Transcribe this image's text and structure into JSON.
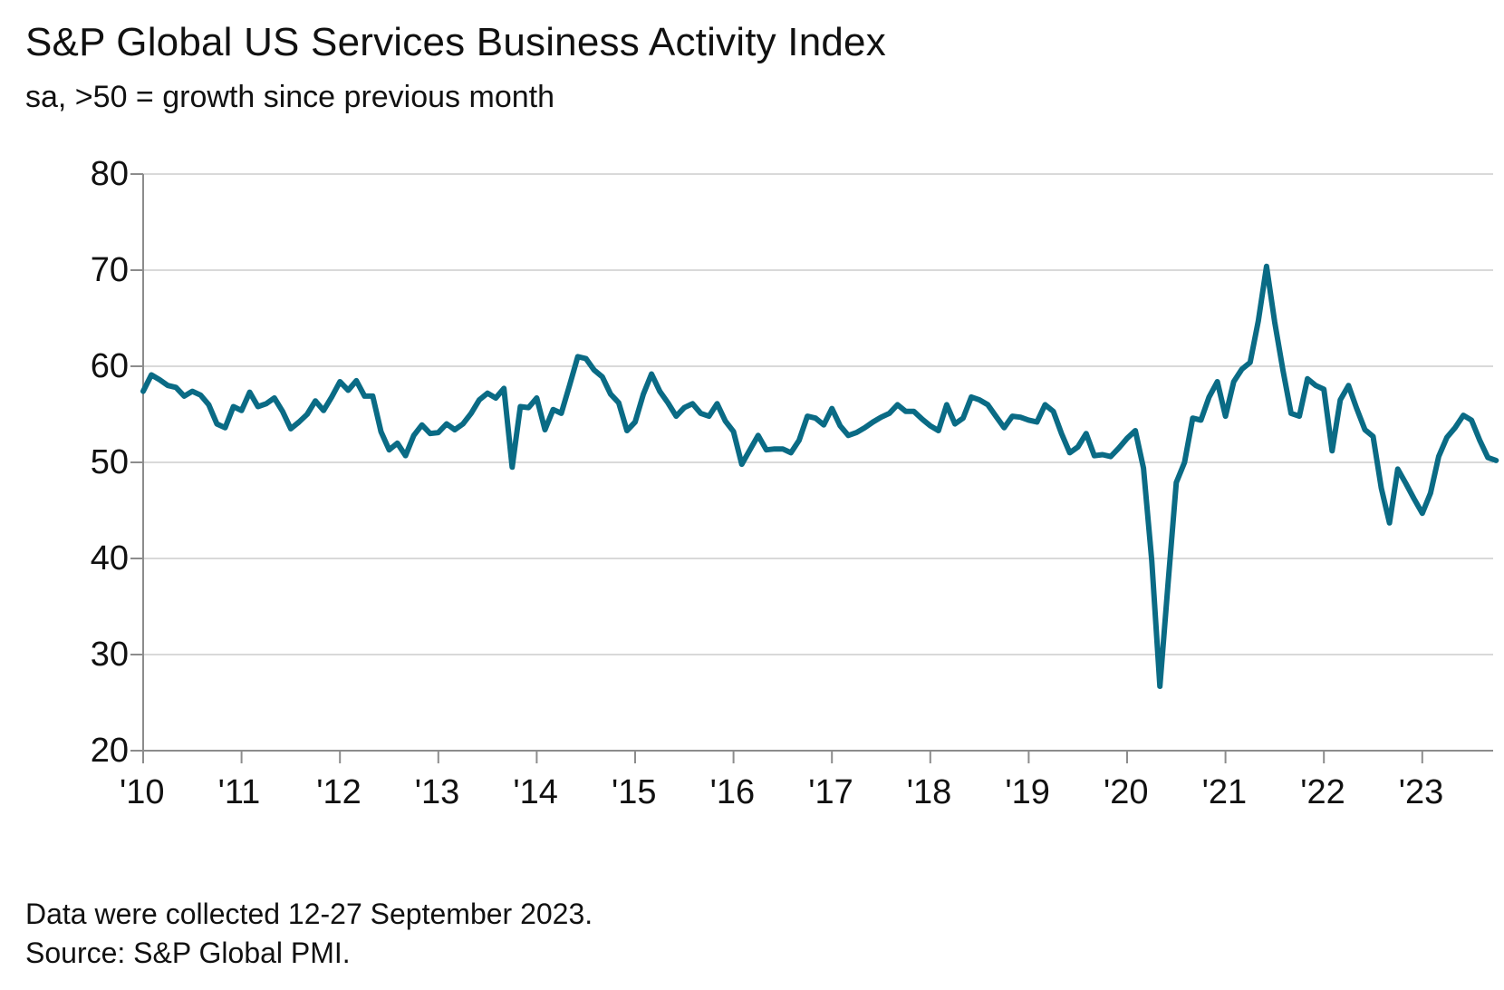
{
  "title": "S&P Global US Services Business Activity Index",
  "subtitle": "sa, >50 = growth since previous month",
  "footnotes": [
    "Data were collected 12-27 September 2023.",
    "Source: S&P Global PMI."
  ],
  "chart_data": {
    "type": "line",
    "title": "S&P Global US Services Business Activity Index",
    "subtitle": "sa, >50 = growth since previous month",
    "xlabel": "",
    "ylabel": "",
    "ylim": [
      20,
      80
    ],
    "yticks": [
      "80",
      "70",
      "60",
      "50",
      "40",
      "30",
      "20"
    ],
    "xticks": [
      "'10",
      "'11",
      "'12",
      "'13",
      "'14",
      "'15",
      "'16",
      "'17",
      "'18",
      "'19",
      "'20",
      "'21",
      "'22",
      "'23"
    ],
    "grid": true,
    "legend": "none",
    "color": "#0a6b85",
    "x_start": "2010-01",
    "x_end": "2023-09",
    "frequency": "monthly",
    "series": [
      {
        "values": [
          57.4,
          59.1,
          58.6,
          58.0,
          57.8,
          56.9,
          57.4,
          57.0,
          56.0,
          54.0,
          53.6,
          55.8,
          55.4,
          57.3,
          55.8,
          56.1,
          56.7,
          55.3,
          53.5,
          54.2,
          55.0,
          56.4,
          55.4,
          56.8,
          58.4,
          57.5,
          58.5,
          56.9,
          56.9,
          53.2,
          51.3,
          52.0,
          50.7,
          52.8,
          53.9,
          53.0,
          53.1,
          54.0,
          53.4,
          54.0,
          55.1,
          56.5,
          57.2,
          56.7,
          57.7,
          49.5,
          55.8,
          55.7,
          56.7,
          53.4,
          55.5,
          55.1,
          58.0,
          61.0,
          60.8,
          59.6,
          58.9,
          57.1,
          56.2,
          53.3,
          54.2,
          57.1,
          59.2,
          57.4,
          56.2,
          54.8,
          55.7,
          56.1,
          55.1,
          54.8,
          56.1,
          54.3,
          53.2,
          49.8,
          51.3,
          52.8,
          51.3,
          51.4,
          51.4,
          51.0,
          52.3,
          54.8,
          54.6,
          53.9,
          55.6,
          53.8,
          52.8,
          53.1,
          53.6,
          54.2,
          54.7,
          55.1,
          56.0,
          55.3,
          55.3,
          54.5,
          53.8,
          53.3,
          56.0,
          54.0,
          54.6,
          56.8,
          56.5,
          56.0,
          54.8,
          53.6,
          54.8,
          54.7,
          54.4,
          54.2,
          56.0,
          55.3,
          53.0,
          51.0,
          51.6,
          53.0,
          50.7,
          50.8,
          50.6,
          51.5,
          52.5,
          53.3,
          49.4,
          39.8,
          26.7,
          37.5,
          47.9,
          50.0,
          54.6,
          54.4,
          56.8,
          58.4,
          54.8,
          58.4,
          59.7,
          60.4,
          64.7,
          70.4,
          64.6,
          59.6,
          55.1,
          54.8,
          58.7,
          58.0,
          57.6,
          51.2,
          56.5,
          58.0,
          55.6,
          53.4,
          52.7,
          47.3,
          43.7,
          49.3,
          47.8,
          46.2,
          44.7,
          46.8,
          50.6,
          52.6,
          53.6,
          54.9,
          54.4,
          52.3,
          50.5,
          50.2
        ]
      }
    ]
  }
}
